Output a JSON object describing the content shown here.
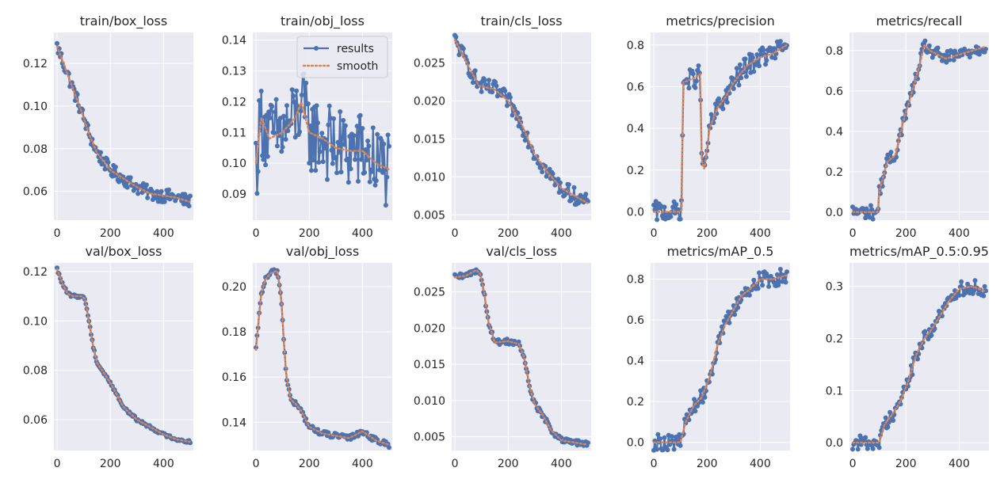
{
  "figure": {
    "colors": {
      "panel_bg": "#EAEAF2",
      "grid": "#FFFFFF",
      "results": "#4C72B0",
      "smooth": "#DD8452",
      "text": "#262626"
    },
    "legend": {
      "entries": [
        "results",
        "smooth"
      ],
      "placement": "upper-right",
      "panel": "train/obj_loss"
    }
  },
  "chart_data": [
    {
      "type": "line",
      "title": "train/box_loss",
      "xlabel": "",
      "ylabel": "",
      "xlim": [
        -12,
        512
      ],
      "ylim": [
        0.0465,
        0.1345
      ],
      "xticks": [
        "0",
        "200",
        "400"
      ],
      "yticks": [
        "0.06",
        "0.08",
        "0.10",
        "0.12"
      ],
      "grid": true,
      "series": [
        {
          "name": "results",
          "style": "line+markers",
          "noise": 0.0032
        },
        {
          "name": "smooth",
          "style": "dotted"
        }
      ],
      "smooth_curve": [
        [
          0,
          0.128
        ],
        [
          30,
          0.118
        ],
        [
          60,
          0.108
        ],
        [
          90,
          0.098
        ],
        [
          120,
          0.087
        ],
        [
          150,
          0.078
        ],
        [
          200,
          0.07
        ],
        [
          250,
          0.066
        ],
        [
          300,
          0.062
        ],
        [
          350,
          0.059
        ],
        [
          400,
          0.058
        ],
        [
          450,
          0.057
        ],
        [
          500,
          0.055
        ]
      ]
    },
    {
      "type": "line",
      "title": "train/obj_loss",
      "xlabel": "",
      "ylabel": "",
      "xlim": [
        -12,
        512
      ],
      "ylim": [
        0.0815,
        0.1425
      ],
      "xticks": [
        "0",
        "200",
        "400"
      ],
      "yticks": [
        "0.09",
        "0.10",
        "0.11",
        "0.12",
        "0.13",
        "0.14"
      ],
      "grid": true,
      "series": [
        {
          "name": "results",
          "style": "line+markers",
          "noise": 0.013
        },
        {
          "name": "smooth",
          "style": "dotted"
        }
      ],
      "smooth_curve": [
        [
          0,
          0.1
        ],
        [
          20,
          0.115
        ],
        [
          50,
          0.108
        ],
        [
          100,
          0.11
        ],
        [
          150,
          0.115
        ],
        [
          170,
          0.12
        ],
        [
          200,
          0.11
        ],
        [
          250,
          0.108
        ],
        [
          300,
          0.105
        ],
        [
          350,
          0.104
        ],
        [
          400,
          0.104
        ],
        [
          450,
          0.1
        ],
        [
          500,
          0.098
        ]
      ]
    },
    {
      "type": "line",
      "title": "train/cls_loss",
      "xlabel": "",
      "ylabel": "",
      "xlim": [
        -12,
        512
      ],
      "ylim": [
        0.0043,
        0.029
      ],
      "xticks": [
        "0",
        "200",
        "400"
      ],
      "yticks": [
        "0.005",
        "0.010",
        "0.015",
        "0.020",
        "0.025"
      ],
      "grid": true,
      "series": [
        {
          "name": "results",
          "style": "line+markers",
          "noise": 0.0011
        },
        {
          "name": "smooth",
          "style": "dotted"
        }
      ],
      "smooth_curve": [
        [
          0,
          0.028
        ],
        [
          30,
          0.026
        ],
        [
          60,
          0.024
        ],
        [
          90,
          0.022
        ],
        [
          150,
          0.0215
        ],
        [
          200,
          0.02
        ],
        [
          250,
          0.017
        ],
        [
          300,
          0.013
        ],
        [
          350,
          0.0105
        ],
        [
          400,
          0.0085
        ],
        [
          450,
          0.0075
        ],
        [
          500,
          0.0065
        ]
      ]
    },
    {
      "type": "line",
      "title": "metrics/precision",
      "xlabel": "",
      "ylabel": "",
      "xlim": [
        -12,
        512
      ],
      "ylim": [
        -0.04,
        0.86
      ],
      "xticks": [
        "0",
        "200",
        "400"
      ],
      "yticks": [
        "0.0",
        "0.2",
        "0.4",
        "0.6",
        "0.8"
      ],
      "grid": true,
      "series": [
        {
          "name": "results",
          "style": "line+markers",
          "noise": 0.05
        },
        {
          "name": "smooth",
          "style": "dotted"
        }
      ],
      "smooth_curve": [
        [
          0,
          0.0
        ],
        [
          95,
          0.0
        ],
        [
          105,
          0.01
        ],
        [
          110,
          0.62
        ],
        [
          150,
          0.64
        ],
        [
          175,
          0.66
        ],
        [
          180,
          0.25
        ],
        [
          190,
          0.2
        ],
        [
          210,
          0.4
        ],
        [
          240,
          0.5
        ],
        [
          270,
          0.55
        ],
        [
          300,
          0.62
        ],
        [
          350,
          0.7
        ],
        [
          400,
          0.74
        ],
        [
          450,
          0.76
        ],
        [
          500,
          0.8
        ]
      ]
    },
    {
      "type": "line",
      "title": "metrics/recall",
      "xlabel": "",
      "ylabel": "",
      "xlim": [
        -12,
        512
      ],
      "ylim": [
        -0.04,
        0.89
      ],
      "xticks": [
        "0",
        "200",
        "400"
      ],
      "yticks": [
        "0.0",
        "0.2",
        "0.4",
        "0.6",
        "0.8"
      ],
      "grid": true,
      "series": [
        {
          "name": "results",
          "style": "line+markers",
          "noise": 0.035
        },
        {
          "name": "smooth",
          "style": "dotted"
        }
      ],
      "smooth_curve": [
        [
          0,
          0.0
        ],
        [
          95,
          0.0
        ],
        [
          100,
          0.1
        ],
        [
          130,
          0.25
        ],
        [
          160,
          0.28
        ],
        [
          190,
          0.45
        ],
        [
          220,
          0.58
        ],
        [
          250,
          0.72
        ],
        [
          270,
          0.83
        ],
        [
          290,
          0.8
        ],
        [
          320,
          0.78
        ],
        [
          350,
          0.76
        ],
        [
          400,
          0.78
        ],
        [
          450,
          0.8
        ],
        [
          500,
          0.82
        ]
      ]
    },
    {
      "type": "line",
      "title": "val/box_loss",
      "xlabel": "",
      "ylabel": "",
      "xlim": [
        -12,
        512
      ],
      "ylim": [
        0.0475,
        0.1235
      ],
      "xticks": [
        "0",
        "200",
        "400"
      ],
      "yticks": [
        "0.06",
        "0.08",
        "0.10",
        "0.12"
      ],
      "grid": true,
      "series": [
        {
          "name": "results",
          "style": "line+markers",
          "noise": 0.0006
        },
        {
          "name": "smooth",
          "style": "dotted"
        }
      ],
      "smooth_curve": [
        [
          0,
          0.121
        ],
        [
          20,
          0.115
        ],
        [
          40,
          0.111
        ],
        [
          60,
          0.11
        ],
        [
          90,
          0.11
        ],
        [
          105,
          0.109
        ],
        [
          120,
          0.1
        ],
        [
          135,
          0.09
        ],
        [
          150,
          0.083
        ],
        [
          200,
          0.075
        ],
        [
          250,
          0.065
        ],
        [
          300,
          0.06
        ],
        [
          350,
          0.057
        ],
        [
          400,
          0.054
        ],
        [
          450,
          0.052
        ],
        [
          500,
          0.051
        ]
      ]
    },
    {
      "type": "line",
      "title": "val/obj_loss",
      "xlabel": "",
      "ylabel": "",
      "xlim": [
        -12,
        512
      ],
      "ylim": [
        0.1275,
        0.2105
      ],
      "xticks": [
        "0",
        "200",
        "400"
      ],
      "yticks": [
        "0.14",
        "0.16",
        "0.18",
        "0.20"
      ],
      "grid": true,
      "series": [
        {
          "name": "results",
          "style": "line+markers",
          "noise": 0.0012
        },
        {
          "name": "smooth",
          "style": "dotted"
        }
      ],
      "smooth_curve": [
        [
          0,
          0.172
        ],
        [
          10,
          0.185
        ],
        [
          20,
          0.197
        ],
        [
          35,
          0.203
        ],
        [
          55,
          0.206
        ],
        [
          80,
          0.207
        ],
        [
          95,
          0.195
        ],
        [
          105,
          0.175
        ],
        [
          115,
          0.16
        ],
        [
          130,
          0.15
        ],
        [
          150,
          0.148
        ],
        [
          170,
          0.145
        ],
        [
          200,
          0.138
        ],
        [
          250,
          0.135
        ],
        [
          300,
          0.134
        ],
        [
          350,
          0.133
        ],
        [
          400,
          0.136
        ],
        [
          450,
          0.132
        ],
        [
          500,
          0.13
        ]
      ]
    },
    {
      "type": "line",
      "title": "val/cls_loss",
      "xlabel": "",
      "ylabel": "",
      "xlim": [
        -12,
        512
      ],
      "ylim": [
        0.0031,
        0.029
      ],
      "xticks": [
        "0",
        "200",
        "400"
      ],
      "yticks": [
        "0.005",
        "0.010",
        "0.015",
        "0.020",
        "0.025"
      ],
      "grid": true,
      "series": [
        {
          "name": "results",
          "style": "line+markers",
          "noise": 0.0004
        },
        {
          "name": "smooth",
          "style": "dotted"
        }
      ],
      "smooth_curve": [
        [
          0,
          0.027
        ],
        [
          40,
          0.0272
        ],
        [
          80,
          0.028
        ],
        [
          95,
          0.0275
        ],
        [
          110,
          0.025
        ],
        [
          125,
          0.021
        ],
        [
          150,
          0.018
        ],
        [
          200,
          0.0182
        ],
        [
          240,
          0.0178
        ],
        [
          260,
          0.016
        ],
        [
          280,
          0.012
        ],
        [
          300,
          0.0095
        ],
        [
          330,
          0.008
        ],
        [
          360,
          0.006
        ],
        [
          400,
          0.0045
        ],
        [
          450,
          0.0042
        ],
        [
          500,
          0.0039
        ]
      ]
    },
    {
      "type": "line",
      "title": "metrics/mAP_0.5",
      "xlabel": "",
      "ylabel": "",
      "xlim": [
        -12,
        512
      ],
      "ylim": [
        -0.04,
        0.88
      ],
      "xticks": [
        "0",
        "200",
        "400"
      ],
      "yticks": [
        "0.0",
        "0.2",
        "0.4",
        "0.6",
        "0.8"
      ],
      "grid": true,
      "series": [
        {
          "name": "results",
          "style": "line+markers",
          "noise": 0.04
        },
        {
          "name": "smooth",
          "style": "dotted"
        }
      ],
      "smooth_curve": [
        [
          0,
          0.0
        ],
        [
          100,
          0.0
        ],
        [
          120,
          0.1
        ],
        [
          150,
          0.18
        ],
        [
          180,
          0.22
        ],
        [
          210,
          0.32
        ],
        [
          240,
          0.48
        ],
        [
          270,
          0.58
        ],
        [
          300,
          0.65
        ],
        [
          330,
          0.72
        ],
        [
          360,
          0.75
        ],
        [
          400,
          0.8
        ],
        [
          450,
          0.8
        ],
        [
          500,
          0.82
        ]
      ]
    },
    {
      "type": "line",
      "title": "metrics/mAP_0.5:0.95",
      "xlabel": "",
      "ylabel": "",
      "xlim": [
        -12,
        512
      ],
      "ylim": [
        -0.015,
        0.345
      ],
      "xticks": [
        "0",
        "200",
        "400"
      ],
      "yticks": [
        "0.0",
        "0.1",
        "0.2",
        "0.3"
      ],
      "grid": true,
      "series": [
        {
          "name": "results",
          "style": "line+markers",
          "noise": 0.014
        },
        {
          "name": "smooth",
          "style": "dotted"
        }
      ],
      "smooth_curve": [
        [
          0,
          0.0
        ],
        [
          100,
          0.0
        ],
        [
          120,
          0.035
        ],
        [
          150,
          0.055
        ],
        [
          180,
          0.08
        ],
        [
          210,
          0.12
        ],
        [
          240,
          0.17
        ],
        [
          270,
          0.2
        ],
        [
          300,
          0.22
        ],
        [
          330,
          0.245
        ],
        [
          360,
          0.27
        ],
        [
          400,
          0.295
        ],
        [
          450,
          0.3
        ],
        [
          500,
          0.29
        ]
      ]
    }
  ]
}
